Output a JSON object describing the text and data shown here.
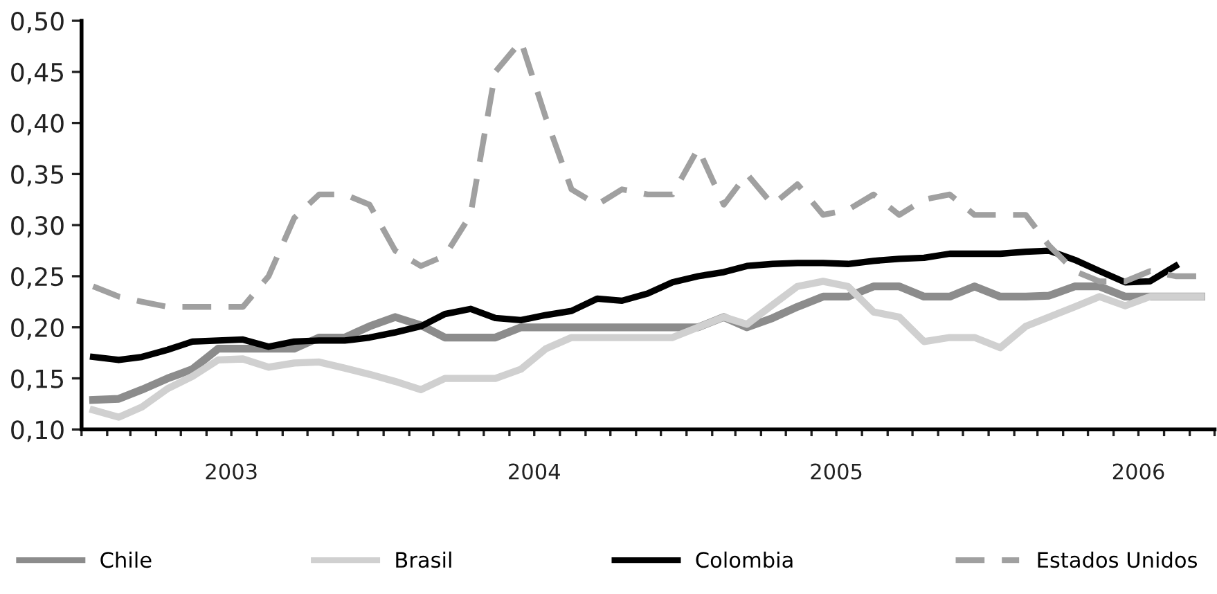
{
  "chart_data": {
    "type": "line",
    "x": [
      "2003-01-15",
      "2003-02-15",
      "2003-03-15",
      "2003-04-15",
      "2003-05-15",
      "2003-06-15",
      "2003-07-15",
      "2003-08-15",
      "2003-09-15",
      "2003-10-15",
      "2003-11-15",
      "2003-12-15",
      "2004-01-15",
      "2004-02-15",
      "2004-03-15",
      "2004-04-15",
      "2004-05-15",
      "2004-06-15",
      "2004-07-15",
      "2004-08-15",
      "2004-09-15",
      "2004-10-15",
      "2004-11-15",
      "2004-12-15",
      "2005-01-15",
      "2005-02-15",
      "2005-03-15",
      "2005-04-15",
      "2005-05-15",
      "2005-06-15",
      "2005-07-15",
      "2005-08-15",
      "2005-09-15",
      "2005-10-15",
      "2005-11-15",
      "2005-12-15",
      "2006-01-15",
      "2006-02-15",
      "2006-03-15",
      "2006-04-15",
      "2006-05-15",
      "2006-06-15",
      "2006-07-15",
      "2006-08-15",
      "2006-09-15"
    ],
    "series": [
      {
        "name": "Chile",
        "color": "#8c8c8c",
        "line_style": "solid",
        "values": [
          0.129,
          0.13,
          0.139,
          0.15,
          0.159,
          0.179,
          0.179,
          0.179,
          0.179,
          0.19,
          0.19,
          0.201,
          0.21,
          0.202,
          0.19,
          0.19,
          0.19,
          0.2,
          0.2,
          0.2,
          0.2,
          0.2,
          0.2,
          0.2,
          0.2,
          0.21,
          0.2,
          0.209,
          0.22,
          0.23,
          0.23,
          0.24,
          0.24,
          0.23,
          0.23,
          0.24,
          0.23,
          0.23,
          0.231,
          0.24,
          0.24,
          0.23,
          0.23,
          0.23,
          0.23
        ]
      },
      {
        "name": "Brasil",
        "color": "#d0d0d0",
        "line_style": "solid",
        "values": [
          0.119,
          0.112,
          0.122,
          0.14,
          0.152,
          0.168,
          0.169,
          0.161,
          0.165,
          0.166,
          0.16,
          0.154,
          0.147,
          0.139,
          0.15,
          0.15,
          0.15,
          0.159,
          0.179,
          0.19,
          0.19,
          0.19,
          0.19,
          0.19,
          0.2,
          0.21,
          0.203,
          0.222,
          0.24,
          0.245,
          0.24,
          0.215,
          0.21,
          0.186,
          0.19,
          0.19,
          0.18,
          0.201,
          0.21,
          0.22,
          0.23,
          0.221,
          0.23,
          0.23,
          0.23
        ]
      },
      {
        "name": "Colombia",
        "color": "#000000",
        "line_style": "solid",
        "values": [
          0.171,
          0.168,
          0.171,
          0.178,
          0.186,
          0.187,
          0.188,
          0.181,
          0.186,
          0.187,
          0.187,
          0.19,
          0.195,
          0.201,
          0.213,
          0.218,
          0.209,
          0.207,
          0.212,
          0.216,
          0.228,
          0.226,
          0.233,
          0.244,
          0.25,
          0.254,
          0.26,
          0.262,
          0.263,
          0.263,
          0.262,
          0.265,
          0.267,
          0.268,
          0.272,
          0.272,
          0.272,
          0.274,
          0.275,
          0.266,
          0.255,
          0.244,
          0.245,
          0.26,
          null
        ]
      },
      {
        "name": "Estados Unidos",
        "color": "#a0a0a0",
        "line_style": "dashed",
        "values": [
          0.24,
          0.23,
          0.225,
          0.22,
          0.22,
          0.22,
          0.22,
          0.25,
          0.307,
          0.33,
          0.33,
          0.32,
          0.275,
          0.26,
          0.27,
          0.31,
          0.45,
          0.48,
          0.405,
          0.335,
          0.32,
          0.335,
          0.33,
          0.33,
          0.375,
          0.32,
          0.35,
          0.32,
          0.34,
          0.31,
          0.315,
          0.33,
          0.31,
          0.325,
          0.33,
          0.31,
          0.31,
          0.31,
          0.28,
          0.255,
          0.245,
          0.245,
          0.255,
          0.25,
          0.25
        ]
      }
    ],
    "xlim": [
      "2003-01",
      "2006-10"
    ],
    "xticks": [
      {
        "value": "2003-01",
        "label": null
      },
      {
        "value": "2003-02",
        "label": null
      },
      {
        "value": "2003-03",
        "label": null
      },
      {
        "value": "2003-04",
        "label": null
      },
      {
        "value": "2003-05",
        "label": null
      },
      {
        "value": "2003-06",
        "label": null
      },
      {
        "value": "2003-07",
        "label": "2003"
      },
      {
        "value": "2003-08",
        "label": null
      },
      {
        "value": "2003-09",
        "label": null
      },
      {
        "value": "2003-10",
        "label": null
      },
      {
        "value": "2003-11",
        "label": null
      },
      {
        "value": "2003-12",
        "label": null
      },
      {
        "value": "2004-01",
        "label": null
      },
      {
        "value": "2004-02",
        "label": null
      },
      {
        "value": "2004-03",
        "label": null
      },
      {
        "value": "2004-04",
        "label": null
      },
      {
        "value": "2004-05",
        "label": null
      },
      {
        "value": "2004-06",
        "label": null
      },
      {
        "value": "2004-07",
        "label": "2004"
      },
      {
        "value": "2004-08",
        "label": null
      },
      {
        "value": "2004-09",
        "label": null
      },
      {
        "value": "2004-10",
        "label": null
      },
      {
        "value": "2004-11",
        "label": null
      },
      {
        "value": "2004-12",
        "label": null
      },
      {
        "value": "2005-01",
        "label": null
      },
      {
        "value": "2005-02",
        "label": null
      },
      {
        "value": "2005-03",
        "label": null
      },
      {
        "value": "2005-04",
        "label": null
      },
      {
        "value": "2005-05",
        "label": null
      },
      {
        "value": "2005-06",
        "label": null
      },
      {
        "value": "2005-07",
        "label": "2005"
      },
      {
        "value": "2005-08",
        "label": null
      },
      {
        "value": "2005-09",
        "label": null
      },
      {
        "value": "2005-10",
        "label": null
      },
      {
        "value": "2005-11",
        "label": null
      },
      {
        "value": "2005-12",
        "label": null
      },
      {
        "value": "2006-01",
        "label": null
      },
      {
        "value": "2006-02",
        "label": null
      },
      {
        "value": "2006-03",
        "label": null
      },
      {
        "value": "2006-04",
        "label": null
      },
      {
        "value": "2006-05",
        "label": null
      },
      {
        "value": "2006-06",
        "label": null
      },
      {
        "value": "2006-07",
        "label": "2006"
      },
      {
        "value": "2006-08",
        "label": null
      },
      {
        "value": "2006-09",
        "label": null
      },
      {
        "value": "2006-10",
        "label": null
      }
    ],
    "ylim": [
      0.1,
      0.5
    ],
    "yticks": [
      {
        "value": 0.1,
        "label": "0,10"
      },
      {
        "value": 0.15,
        "label": "0,15"
      },
      {
        "value": 0.2,
        "label": "0,20"
      },
      {
        "value": 0.25,
        "label": "0,25"
      },
      {
        "value": 0.3,
        "label": "0,30"
      },
      {
        "value": 0.35,
        "label": "0,35"
      },
      {
        "value": 0.4,
        "label": "0,40"
      },
      {
        "value": 0.45,
        "label": "0,45"
      },
      {
        "value": 0.5,
        "label": "0,50"
      }
    ],
    "grid": false,
    "legend": "bottom",
    "marker": "none"
  }
}
